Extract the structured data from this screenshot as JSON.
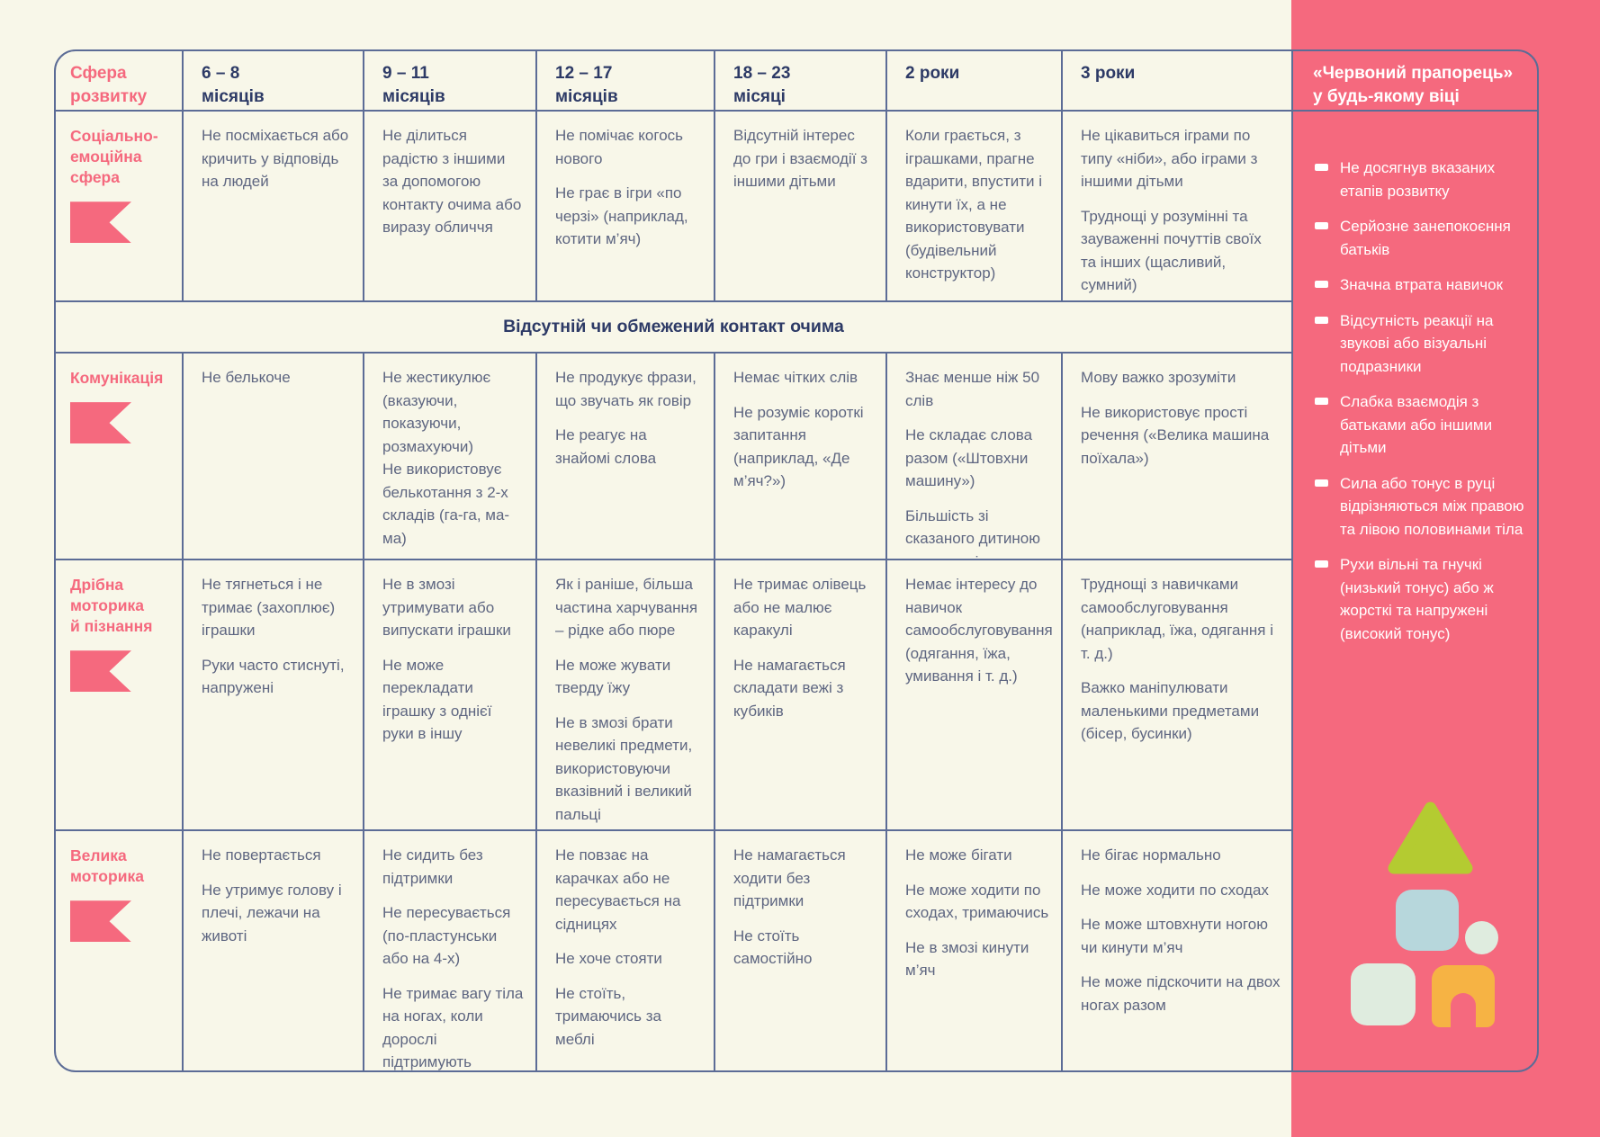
{
  "colors": {
    "background": "#f8f7e9",
    "accent": "#f5697e",
    "border": "#5c6c96",
    "heading": "#2d3a66",
    "body-text": "#5e6681",
    "lime": "#b4cb31",
    "blue-block": "#b7d7dc",
    "mint-block": "#dfecdf",
    "orange-block": "#f6b344"
  },
  "table": {
    "area_header": "Сфера\nрозвитку",
    "age_headers": [
      "6 – 8\nмісяців",
      "9 – 11\nмісяців",
      "12 – 17\nмісяців",
      "18 – 23\nмісяці",
      "2 роки",
      "3 роки"
    ]
  },
  "merged_note": "Відсутній чи обмежений контакт очима",
  "rows": [
    {
      "category": "Соціально-\nемоційна\nсфера",
      "cells": [
        "Не посміхається або кричить у відповідь на людей",
        "Не ділиться радістю з іншими за допомогою контакту очима або виразу обличчя",
        "Не помічає когось нового\n\nНе грає в ігри «по черзі» (наприклад, котити м’яч)",
        "Відсутній інтерес до гри і взаємодії з іншими дітьми",
        "Коли грається, з іграшками, прагне вдарити, впустити і кинути їх, а не використовувати (будівельний конструктор)",
        "Не цікавиться іграми по типу «ніби», або іграми з іншими дітьми\n\nТруднощі у розумінні та зауваженні почуттів своїх та інших (щасливий, сумний)"
      ]
    },
    {
      "category": "Комунікація",
      "cells": [
        "Не белькоче",
        "Не жестикулює (вказуючи, показуючи, розмахуючи)\nНе використовує белькотання з 2-х складів (га-га, ма-ма)",
        "Не продукує фрази, що звучать як говір\n\nНе реагує на знайомі слова",
        "Немає чітких слів\n\nНе розуміє короткі запитання (наприклад, «Де м’яч?»)",
        "Знає менше ніж 50 слів\n\nНе складає слова разом («Штовхни машину»)\n\nБільшість зі сказаного дитиною не зрозуміло",
        "Мову важко зрозуміти\n\nНе використовує прості речення («Велика машина поїхала»)"
      ]
    },
    {
      "category": "Дрібна\nмоторика\nй пізнання",
      "cells": [
        "Не тягнеться і не тримає (захоплює) іграшки\n\nРуки часто стиснуті, напружені",
        "Не в змозі утримувати або випускати іграшки\n\nНе може перекладати іграшку з однієї руки в іншу",
        "Як і раніше, більша частина харчування – рідке або пюре\n\nНе може жувати тверду їжу\n\nНе в змозі брати невеликі предмети, використовуючи вказівний і великий пальці",
        "Не тримає олівець або не малює каракулі\n\nНе намагається складати вежі з кубиків",
        "Немає інтересу до навичок самообслуговування (одягання, їжа, умивання і т. д.)",
        "Труднощі з навичками самообслуговування (наприклад, їжа, одягання і т. д.)\n\nВажко маніпулювати маленькими предметами (бісер, бусинки)"
      ]
    },
    {
      "category": "Велика\nмоторика",
      "cells": [
        "Не повертається\n\nНе утримує голову і плечі, лежачи на животі",
        "Не сидить без підтримки\n\nНе пересувається (по-пластунськи або на 4-х)\n\nНе тримає вагу тіла на ногах, коли дорослі підтримують",
        "Не повзає на карачках або не пересувається на сідницях\n\nНе хоче стояти\n\nНе стоїть, тримаючись за меблі",
        "Не намагається ходити без підтримки\n\nНе стоїть самостійно",
        "Не може бігати\n\nНе може ходити по сходах, тримаючись\n\nНе в змозі кинути м’яч",
        "Не бігає нормально\n\nНе може ходити по сходах\n\nНе може штовхнути ногою чи кинути м’яч\n\nНе може підскочити на двох ногах разом"
      ]
    }
  ],
  "sidebar": {
    "title": "«Червоний прапорець»\nу будь-якому віці",
    "items": [
      "Не досягнув вказаних етапів розвитку",
      "Серйозне занепокоєння батьків",
      "Значна втрата навичок",
      "Відсутність реакції на звукові або візуальні подразники",
      "Слабка взаємодія з батьками або іншими дітьми",
      "Сила або тонус в руці відрізняються між правою та лівою половинами тіла",
      "Рухи вільні та гнучкі (низький тонус) або ж жорсткі та напружені (високий тонус)"
    ]
  }
}
